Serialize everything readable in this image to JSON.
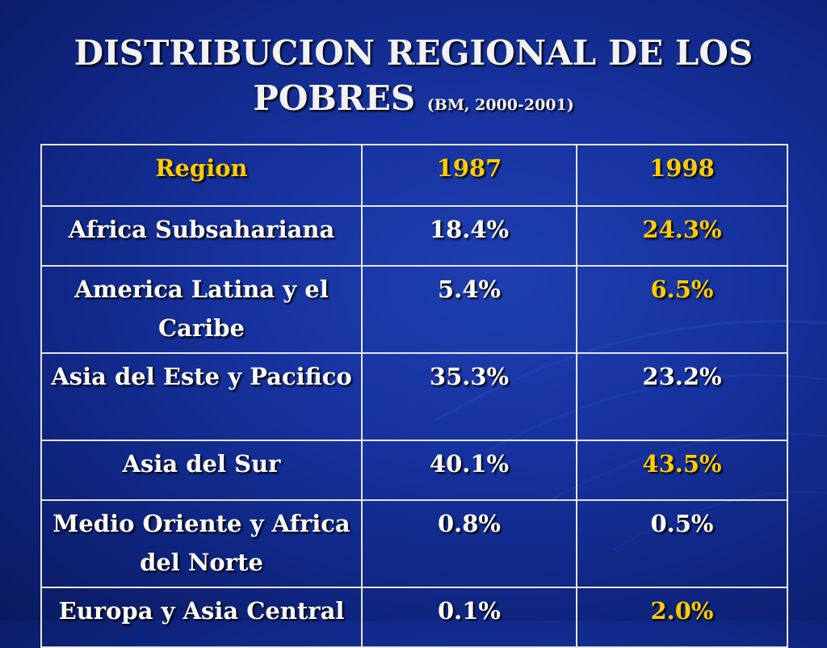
{
  "slide": {
    "title_line1": "DISTRIBUCION REGIONAL DE LOS",
    "title_line2": "POBRES",
    "title_source": "(BM, 2000-2001)"
  },
  "table": {
    "headers": [
      "Region",
      "1987",
      "1998"
    ],
    "rows": [
      {
        "region": "Africa Subsahariana",
        "y1987": "18.4%",
        "y1998": "24.3%"
      },
      {
        "region": "America Latina y el Caribe",
        "y1987": "5.4%",
        "y1998": "6.5%"
      },
      {
        "region": "Asia del Este y Pacifico",
        "y1987": "35.3%",
        "y1998": "23.2%"
      },
      {
        "region": "Asia del Sur",
        "y1987": "40.1%",
        "y1998": "43.5%"
      },
      {
        "region": "Medio Oriente y Africa del Norte",
        "y1987": "0.8%",
        "y1998": "0.5%"
      },
      {
        "region": "Europa y Asia Central",
        "y1987": "0.1%",
        "y1998": "2.0%"
      }
    ]
  },
  "colors": {
    "background": "#1733a0",
    "header_text": "#ffcc00",
    "highlight_text": "#ffcc00",
    "body_text": "#ffffff",
    "border": "#e6e6e6"
  }
}
